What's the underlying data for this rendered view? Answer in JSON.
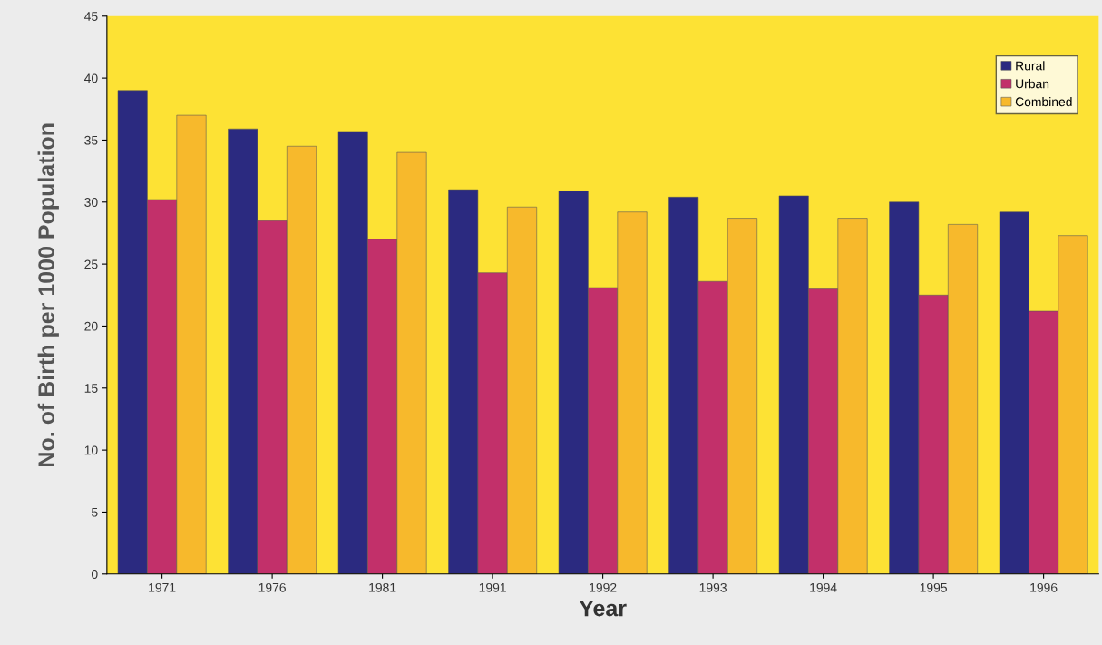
{
  "chart_data": {
    "type": "bar",
    "xlabel": "Year",
    "ylabel": "No. of Birth per 1000 Population",
    "categories": [
      "1971",
      "1976",
      "1981",
      "1991",
      "1992",
      "1993",
      "1994",
      "1995",
      "1996"
    ],
    "series": [
      {
        "name": "Rural",
        "color": "#2b2a80",
        "values": [
          39.0,
          35.9,
          35.7,
          31.0,
          30.9,
          30.4,
          30.5,
          30.0,
          29.2
        ]
      },
      {
        "name": "Urban",
        "color": "#c2306a",
        "values": [
          30.2,
          28.5,
          27.0,
          24.3,
          23.1,
          23.6,
          23.0,
          22.5,
          21.2
        ]
      },
      {
        "name": "Combined",
        "color": "#f7b92c",
        "values": [
          37.0,
          34.5,
          34.0,
          29.6,
          29.2,
          28.7,
          28.7,
          28.2,
          27.3
        ]
      }
    ],
    "ylim": [
      0,
      45
    ],
    "yticks": [
      0,
      5,
      10,
      15,
      20,
      25,
      30,
      35,
      40,
      45
    ],
    "grid": false,
    "legend": "top right"
  }
}
